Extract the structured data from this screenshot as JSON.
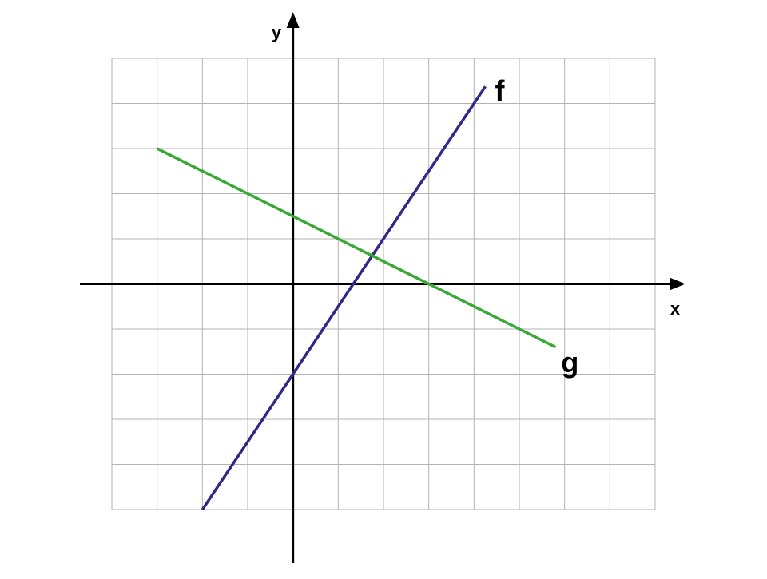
{
  "chart_data": {
    "type": "line",
    "x_label": "x",
    "y_label": "y",
    "xlim": [
      -4,
      8
    ],
    "ylim": [
      -5,
      5
    ],
    "xticks": [
      -4,
      -3,
      -2,
      -1,
      0,
      1,
      2,
      3,
      4,
      5,
      6,
      7,
      8
    ],
    "yticks": [
      -5,
      -4,
      -3,
      -2,
      -1,
      0,
      1,
      2,
      3,
      4,
      5
    ],
    "grid": true,
    "series": [
      {
        "name": "f",
        "color": "#2e2a85",
        "x": [
          -2,
          4.25
        ],
        "values": [
          -5,
          4.375
        ]
      },
      {
        "name": "g",
        "color": "#3aaa35",
        "x": [
          -3,
          5.8
        ],
        "values": [
          3,
          -1.4
        ]
      }
    ]
  }
}
